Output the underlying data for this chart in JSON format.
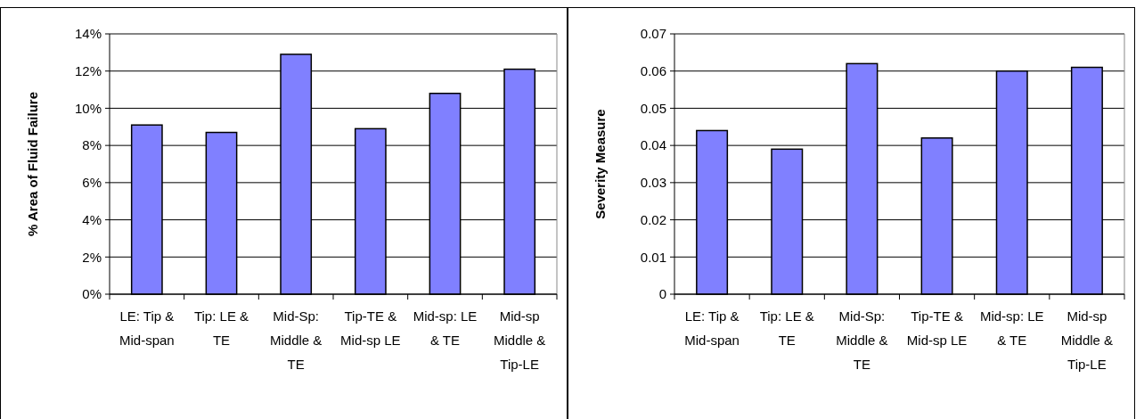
{
  "chart_data": [
    {
      "type": "bar",
      "ylabel": "% Area of Fluid Failure",
      "categories": [
        "LE: Tip & Mid-span",
        "Tip: LE & TE",
        "Mid-Sp: Middle & TE",
        "Tip-TE & Mid-sp LE",
        "Mid-sp: LE & TE",
        "Mid-sp Middle & Tip-LE"
      ],
      "values": [
        9.1,
        8.7,
        12.9,
        8.9,
        10.8,
        12.1
      ],
      "color": "#8080ff",
      "ylim": [
        0,
        14
      ],
      "yticks": [
        {
          "value": 0,
          "label": "0%"
        },
        {
          "value": 2,
          "label": "2%"
        },
        {
          "value": 4,
          "label": "4%"
        },
        {
          "value": 6,
          "label": "6%"
        },
        {
          "value": 8,
          "label": "8%"
        },
        {
          "value": 10,
          "label": "10%"
        },
        {
          "value": 12,
          "label": "12%"
        },
        {
          "value": 14,
          "label": "14%"
        }
      ],
      "grid": "y"
    },
    {
      "type": "bar",
      "ylabel": "Severity Measure",
      "categories": [
        "LE: Tip & Mid-span",
        "Tip: LE & TE",
        "Mid-Sp: Middle & TE",
        "Tip-TE & Mid-sp LE",
        "Mid-sp: LE & TE",
        "Mid-sp Middle & Tip-LE"
      ],
      "values": [
        0.044,
        0.039,
        0.062,
        0.042,
        0.06,
        0.061
      ],
      "color": "#8080ff",
      "ylim": [
        0,
        0.07
      ],
      "yticks": [
        0,
        {
          "value": 0.01,
          "label": "0.01"
        },
        {
          "value": 0.02,
          "label": "0.02"
        },
        {
          "value": 0.03,
          "label": "0.03"
        },
        {
          "value": 0.04,
          "label": "0.04"
        },
        {
          "value": 0.05,
          "label": "0.05"
        },
        {
          "value": 0.06,
          "label": "0.06"
        },
        {
          "value": 0.07,
          "label": "0.07"
        }
      ],
      "grid": "y"
    }
  ]
}
